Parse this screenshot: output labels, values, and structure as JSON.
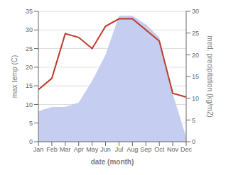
{
  "chart_data": {
    "type": "line",
    "xlabel": "date (month)",
    "ylabel": "max temp (C)",
    "y2label": "med. precipitation (kg/m2)",
    "categories": [
      "Jan",
      "Feb",
      "Mar",
      "Apr",
      "May",
      "Jun",
      "Jul",
      "Aug",
      "Sep",
      "Oct",
      "Nov",
      "Dec"
    ],
    "series": [
      {
        "type": "area",
        "color": "#c5cdf0",
        "axis": "y2",
        "values": [
          7,
          8,
          8,
          9,
          14,
          20,
          29,
          29,
          27,
          24,
          11,
          1
        ]
      },
      {
        "type": "line",
        "color": "#c0392b",
        "values": [
          14,
          17,
          29,
          28,
          25,
          31,
          33,
          33,
          30,
          27,
          13,
          12
        ]
      }
    ],
    "ylim": [
      0,
      35
    ],
    "yticks": [
      0,
      5,
      10,
      15,
      20,
      25,
      30,
      35
    ],
    "y2lim": [
      0,
      30
    ],
    "y2ticks": [
      0,
      5,
      10,
      15,
      20,
      25,
      30
    ],
    "grid": true
  }
}
